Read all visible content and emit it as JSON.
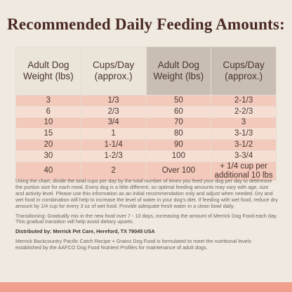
{
  "title": "Recommended Daily Feeding Amounts:",
  "table": {
    "header": [
      "Adult Dog Weight (lbs)",
      "Cups/Day (approx.)",
      "Adult Dog Weight (lbs)",
      "Cups/Day (approx.)"
    ],
    "rows": [
      [
        "3",
        "1/3",
        "50",
        "2-1/3"
      ],
      [
        "6",
        "2/3",
        "60",
        "2-2/3"
      ],
      [
        "10",
        "3/4",
        "70",
        "3"
      ],
      [
        "15",
        "1",
        "80",
        "3-1/3"
      ],
      [
        "20",
        "1-1/4",
        "90",
        "3-1/2"
      ],
      [
        "30",
        "1-2/3",
        "100",
        "3-3/4"
      ],
      [
        "40",
        "2",
        "Over 100",
        "+ 1/4 cup per additional 10 lbs"
      ]
    ]
  },
  "notes": [
    "Using the chart, divide the total cups per day by the total number of times you feed your dog per day to determine the portion size for each meal. Every dog is a little different, so optimal feeding amounts may vary with age, size and activity level. Please use this information as an initial recommendation only and adjust when needed. Dry and wet food in combination will help to increase the level of water in your dog's diet. If feeding with wet food, reduce dry amount by 1/4 cup for every 3 oz of wet food. Provide adequate fresh water in a clean bowl daily.",
    "Transitioning: Gradually mix in the new food over 7 - 10 days, increasing the amount of Merrick Dog Food each day. This gradual transition will help avoid dietary upsets."
  ],
  "distributed_by": "Distributed by: Merrick Pet Care, Hereford, TX 79045 USA",
  "footnote": "Merrick Backcountry Pacific Catch Recipe + Grains Dog Food is formulated to meet the nutritional levels established by the AAFCO Dog Food Nutrient Profiles for maintenance of adult dogs."
}
